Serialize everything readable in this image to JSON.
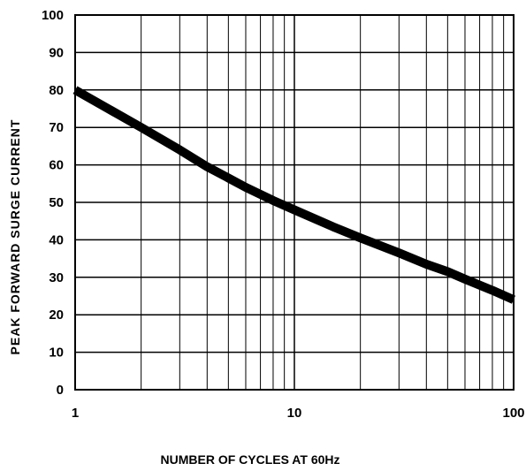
{
  "chart_data": {
    "type": "line",
    "title": "",
    "xlabel": "NUMBER OF CYCLES AT 60Hz",
    "ylabel": "PEAK FORWARD SURGE CURRENT",
    "xscale": "log",
    "xlim": [
      1,
      100
    ],
    "ylim": [
      0,
      100
    ],
    "xticks": [
      1,
      10,
      100
    ],
    "xtick_labels": [
      "1",
      "10",
      "100"
    ],
    "yticks": [
      0,
      10,
      20,
      30,
      40,
      50,
      60,
      70,
      80,
      90,
      100
    ],
    "ytick_labels": [
      "0",
      "10",
      "20",
      "30",
      "40",
      "50",
      "60",
      "70",
      "80",
      "90",
      "100"
    ],
    "grid": true,
    "legend": "none",
    "series": [
      {
        "name": "",
        "color": "#000000",
        "x": [
          1,
          2,
          3,
          4,
          5,
          6,
          8,
          10,
          15,
          20,
          30,
          40,
          50,
          60,
          80,
          100
        ],
        "y": [
          80,
          70,
          64,
          59.5,
          56.5,
          54,
          50.5,
          48,
          43.5,
          40.5,
          36.5,
          33.5,
          31.5,
          29.5,
          26.5,
          24
        ]
      }
    ]
  }
}
